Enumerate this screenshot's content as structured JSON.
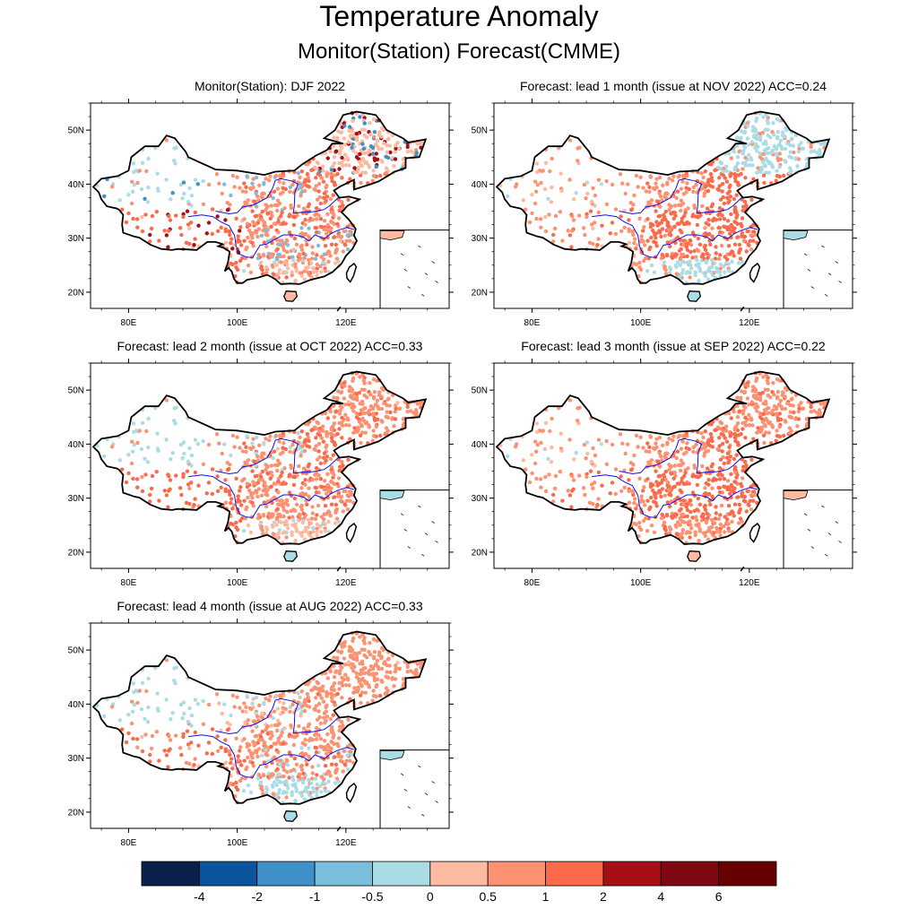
{
  "title": "Temperature Anomaly",
  "subtitle": "Monitor(Station)   Forecast(CMME)",
  "axes": {
    "lat_ticks": [
      "50N",
      "40N",
      "30N",
      "20N"
    ],
    "lon_ticks": [
      "80E",
      "100E",
      "120E"
    ]
  },
  "panels": [
    {
      "title": "Monitor(Station): DJF 2022",
      "style": "monitor"
    },
    {
      "title": "Forecast: lead 1 month (issue at NOV 2022) ACC=0.24",
      "style": "lead1"
    },
    {
      "title": "Forecast: lead 2 month (issue at OCT 2022) ACC=0.33",
      "style": "lead2"
    },
    {
      "title": "Forecast: lead 3 month (issue at SEP 2022) ACC=0.22",
      "style": "lead3"
    },
    {
      "title": "Forecast: lead 4 month (issue at AUG 2022) ACC=0.33",
      "style": "lead4"
    }
  ],
  "colorbar": {
    "colors": [
      "#08204a",
      "#0b559f",
      "#3f8fc8",
      "#7bbedb",
      "#aadce6",
      "#fcbba1",
      "#fc9272",
      "#fb6a4a",
      "#a50f15",
      "#7f0810",
      "#670000"
    ],
    "labels": [
      "-4",
      "-2",
      "-1",
      "-0.5",
      "0",
      "0.5",
      "1",
      "2",
      "4",
      "6"
    ]
  }
}
